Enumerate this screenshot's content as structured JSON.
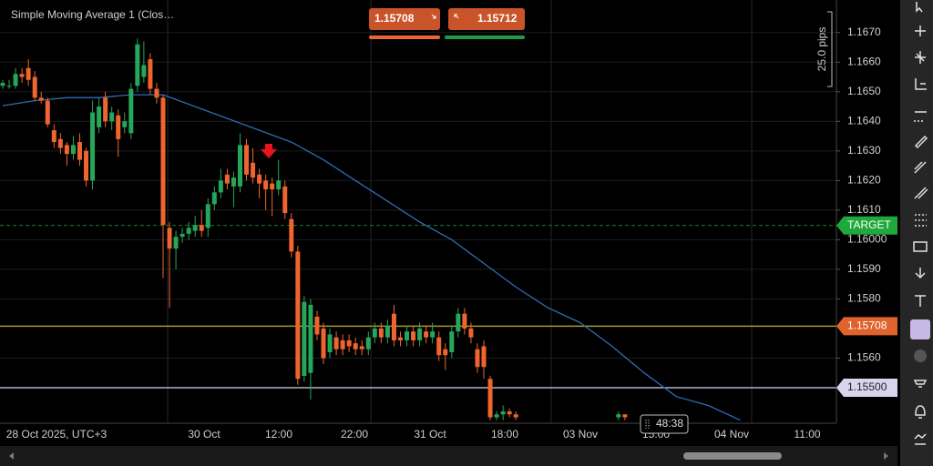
{
  "chart_data": {
    "type": "candlestick",
    "indicator_label": "Simple Moving Average 1 (Clos…",
    "ylim": [
      1.1538,
      1.1681
    ],
    "yticks": [
      {
        "value": 1.167,
        "label": "1.1670"
      },
      {
        "value": 1.166,
        "label": "1.1660"
      },
      {
        "value": 1.165,
        "label": "1.1650"
      },
      {
        "value": 1.164,
        "label": "1.1640"
      },
      {
        "value": 1.163,
        "label": "1.1630"
      },
      {
        "value": 1.162,
        "label": "1.1620"
      },
      {
        "value": 1.161,
        "label": "1.1610"
      },
      {
        "value": 1.16,
        "label": "1.16000"
      },
      {
        "value": 1.159,
        "label": "1.1590"
      },
      {
        "value": 1.158,
        "label": "1.1580"
      },
      {
        "value": 1.156,
        "label": "1.1560"
      }
    ],
    "xlabels": [
      "28 Oct 2025, UTC+3",
      "30 Oct",
      "12:00",
      "22:00",
      "31 Oct",
      "18:00",
      "03 Nov",
      "15:00",
      "04 Nov",
      "11:00"
    ],
    "up_color": "#26a65b",
    "down_color": "#f0642f",
    "open": [
      1.1652,
      1.1652,
      1.1652,
      1.1656,
      1.1658,
      1.1655,
      1.1648,
      1.1647,
      1.1637,
      1.1634,
      1.1632,
      1.1629,
      1.1633,
      1.163,
      1.162,
      1.1638,
      1.1648,
      1.164,
      1.1642,
      1.1638,
      1.1636,
      1.1652,
      1.1655,
      1.1661,
      1.1651,
      1.1648,
      1.1604,
      1.1597,
      1.1601,
      1.1602,
      1.1603,
      1.1605,
      1.1604,
      1.1612,
      1.1616,
      1.1622,
      1.1618,
      1.1618,
      1.1632,
      1.1626,
      1.1622,
      1.162,
      1.1619,
      1.1617,
      1.1618,
      1.1607,
      1.1596,
      1.1554,
      1.1555,
      1.1574,
      1.157,
      1.1562,
      1.1567,
      1.1566,
      1.1566,
      1.1565,
      1.1564,
      1.1563,
      1.1567,
      1.157,
      1.1567,
      1.1575,
      1.1567,
      1.1566,
      1.1569,
      1.1566,
      1.1569,
      1.1567,
      1.1567,
      1.1563,
      1.1562,
      1.1569,
      1.1575,
      1.157,
      1.1563,
      1.1564,
      1.1553,
      1.154,
      1.1541,
      1.1542,
      1.1541,
      null,
      null,
      null,
      null,
      null,
      null,
      null,
      null,
      null,
      null,
      null,
      null,
      null,
      null,
      null,
      1.154,
      1.1541
    ],
    "close": [
      1.1653,
      1.1652,
      1.1656,
      1.1655,
      1.1654,
      1.1648,
      1.1647,
      1.1639,
      1.1633,
      1.1631,
      1.1629,
      1.1632,
      1.1627,
      1.162,
      1.1643,
      1.1645,
      1.164,
      1.1643,
      1.1634,
      1.164,
      1.1651,
      1.1666,
      1.1659,
      1.1651,
      1.1648,
      1.1605,
      1.1597,
      1.1601,
      1.1602,
      1.1604,
      1.1605,
      1.1603,
      1.1612,
      1.1616,
      1.162,
      1.1619,
      1.1621,
      1.1632,
      1.1622,
      1.1621,
      1.1619,
      1.1617,
      1.1617,
      1.162,
      1.1609,
      1.1596,
      1.1553,
      1.1579,
      1.1578,
      1.1568,
      1.156,
      1.1568,
      1.1563,
      1.1563,
      1.1564,
      1.1563,
      1.1563,
      1.1567,
      1.157,
      1.1567,
      1.1571,
      1.1566,
      1.1566,
      1.1569,
      1.1566,
      1.157,
      1.1567,
      1.1569,
      1.1561,
      1.1561,
      1.1569,
      1.1575,
      1.157,
      1.1567,
      1.1557,
      1.1557,
      1.154,
      1.1541,
      1.1542,
      1.1541,
      1.154,
      null,
      null,
      null,
      null,
      null,
      null,
      null,
      null,
      null,
      null,
      null,
      null,
      null,
      null,
      null,
      1.1541,
      1.154
    ],
    "high": [
      1.1654,
      1.1654,
      1.1658,
      1.1658,
      1.1661,
      1.1657,
      1.165,
      1.1648,
      1.1639,
      1.1636,
      1.1633,
      1.1635,
      1.1636,
      1.1631,
      1.1647,
      1.1648,
      1.165,
      1.1645,
      1.1644,
      1.1643,
      1.1653,
      1.1668,
      1.1667,
      1.1663,
      1.1653,
      1.1649,
      1.1606,
      1.1603,
      1.1604,
      1.1606,
      1.1608,
      1.161,
      1.1614,
      1.1618,
      1.1624,
      1.1624,
      1.1623,
      1.1636,
      1.1634,
      1.1631,
      1.1624,
      1.1622,
      1.1621,
      1.1627,
      1.162,
      1.1609,
      1.1598,
      1.1581,
      1.158,
      1.1576,
      1.1572,
      1.157,
      1.1569,
      1.1568,
      1.1568,
      1.1567,
      1.1566,
      1.1569,
      1.1572,
      1.1572,
      1.1573,
      1.1578,
      1.1569,
      1.1571,
      1.1571,
      1.1572,
      1.1571,
      1.1572,
      1.1569,
      1.1565,
      1.1571,
      1.1577,
      1.1577,
      1.1572,
      1.1565,
      1.1566,
      1.1554,
      1.1542,
      1.1544,
      1.1543,
      1.1542,
      null,
      null,
      null,
      null,
      null,
      null,
      null,
      null,
      null,
      null,
      null,
      null,
      null,
      null,
      null,
      1.1542,
      1.1541
    ],
    "low": [
      1.1651,
      1.1651,
      1.1651,
      1.1653,
      1.1652,
      1.1647,
      1.1646,
      1.1638,
      1.1631,
      1.1629,
      1.1625,
      1.1627,
      1.1625,
      1.1618,
      1.1617,
      1.1636,
      1.1638,
      1.1637,
      1.1628,
      1.1636,
      1.1634,
      1.165,
      1.1653,
      1.1649,
      1.1646,
      1.1587,
      1.1577,
      1.159,
      1.1599,
      1.16,
      1.1601,
      1.1601,
      1.1601,
      1.161,
      1.1614,
      1.1617,
      1.1611,
      1.1616,
      1.162,
      1.1619,
      1.1614,
      1.161,
      1.1608,
      1.1615,
      1.1607,
      1.1594,
      1.1551,
      1.1552,
      1.1546,
      1.1566,
      1.1558,
      1.156,
      1.1561,
      1.1561,
      1.1562,
      1.1561,
      1.1561,
      1.1561,
      1.1565,
      1.1565,
      1.1565,
      1.1564,
      1.1564,
      1.1564,
      1.1564,
      1.1564,
      1.1565,
      1.1565,
      1.1559,
      1.1556,
      1.156,
      1.1567,
      1.1568,
      1.1565,
      1.1555,
      1.1553,
      1.1539,
      1.1539,
      1.1539,
      1.154,
      1.1539,
      null,
      null,
      null,
      null,
      null,
      null,
      null,
      null,
      null,
      null,
      null,
      null,
      null,
      null,
      null,
      1.1539,
      1.1539
    ],
    "sma": {
      "color": "#2e6db4",
      "x": [
        0,
        5,
        10,
        15,
        20,
        25,
        30,
        35,
        40,
        45,
        50,
        55,
        60,
        65,
        70,
        75,
        80,
        85,
        90,
        95,
        100,
        105,
        110,
        115
      ],
      "values": [
        1.16453,
        1.1647,
        1.1648,
        1.1648,
        1.1649,
        1.1649,
        1.1645,
        1.1641,
        1.1637,
        1.1633,
        1.1627,
        1.162,
        1.1613,
        1.1606,
        1.16,
        1.1592,
        1.1584,
        1.1577,
        1.1572,
        1.1564,
        1.1555,
        1.1547,
        1.1544,
        1.1539
      ]
    },
    "levels": [
      {
        "label": "TARGET",
        "value": 1.16048,
        "color": "#1fa83c"
      },
      {
        "label": "1.15708",
        "value": 1.15708,
        "color": "#e0622c"
      },
      {
        "label": "1.15500",
        "value": 1.155,
        "color": "#d9d4ee"
      }
    ],
    "range_label": "25.0 pips",
    "countdown": "48:38"
  },
  "trade": {
    "sell": "1.15708",
    "buy": "1.15712"
  }
}
